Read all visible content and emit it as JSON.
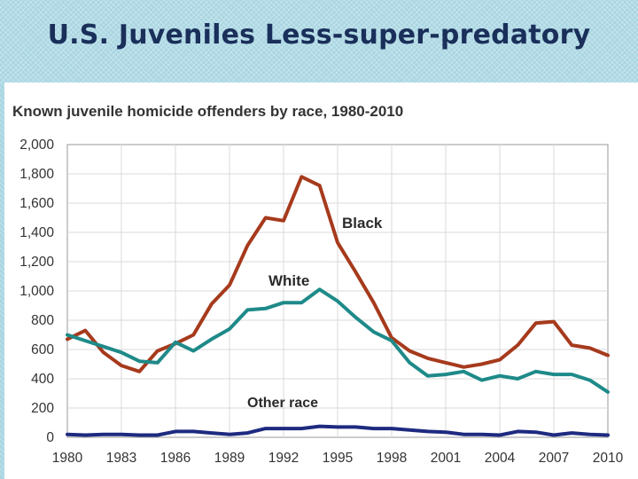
{
  "slide": {
    "title": "U.S. Juveniles Less-super-predatory"
  },
  "chart_data": {
    "type": "line",
    "title": "Known juvenile homicide offenders by race, 1980-2010",
    "xlabel": "",
    "ylabel": "",
    "xlim": [
      1980,
      2010
    ],
    "ylim": [
      0,
      2000
    ],
    "x_ticks": [
      "1980",
      "1983",
      "1986",
      "1989",
      "1992",
      "1995",
      "1998",
      "2001",
      "2004",
      "2007",
      "2010"
    ],
    "y_ticks": [
      "0",
      "200",
      "400",
      "600",
      "800",
      "1,000",
      "1,200",
      "1,400",
      "1,600",
      "1,800",
      "2,000"
    ],
    "grid": true,
    "legend": "labels on lines",
    "x": [
      1980,
      1981,
      1982,
      1983,
      1984,
      1985,
      1986,
      1987,
      1988,
      1989,
      1990,
      1991,
      1992,
      1993,
      1994,
      1995,
      1996,
      1997,
      1998,
      1999,
      2000,
      2001,
      2002,
      2003,
      2004,
      2005,
      2006,
      2007,
      2008,
      2009,
      2010
    ],
    "series": [
      {
        "name": "Black",
        "color": "#a63a1c",
        "values": [
          670,
          730,
          580,
          490,
          450,
          590,
          640,
          700,
          910,
          1040,
          1310,
          1500,
          1480,
          1780,
          1720,
          1330,
          1130,
          920,
          680,
          590,
          540,
          510,
          480,
          500,
          530,
          630,
          780,
          790,
          630,
          610,
          560
        ]
      },
      {
        "name": "White",
        "color": "#1e8a89",
        "values": [
          700,
          660,
          620,
          580,
          520,
          510,
          650,
          590,
          670,
          740,
          870,
          880,
          920,
          920,
          1010,
          930,
          820,
          720,
          660,
          510,
          420,
          430,
          450,
          390,
          420,
          400,
          450,
          430,
          430,
          390,
          310
        ]
      },
      {
        "name": "Other race",
        "color": "#1e2a80",
        "values": [
          20,
          15,
          20,
          20,
          15,
          15,
          40,
          40,
          30,
          20,
          30,
          60,
          60,
          60,
          75,
          70,
          70,
          60,
          60,
          50,
          40,
          35,
          20,
          20,
          15,
          40,
          35,
          15,
          30,
          20,
          15
        ]
      }
    ]
  }
}
